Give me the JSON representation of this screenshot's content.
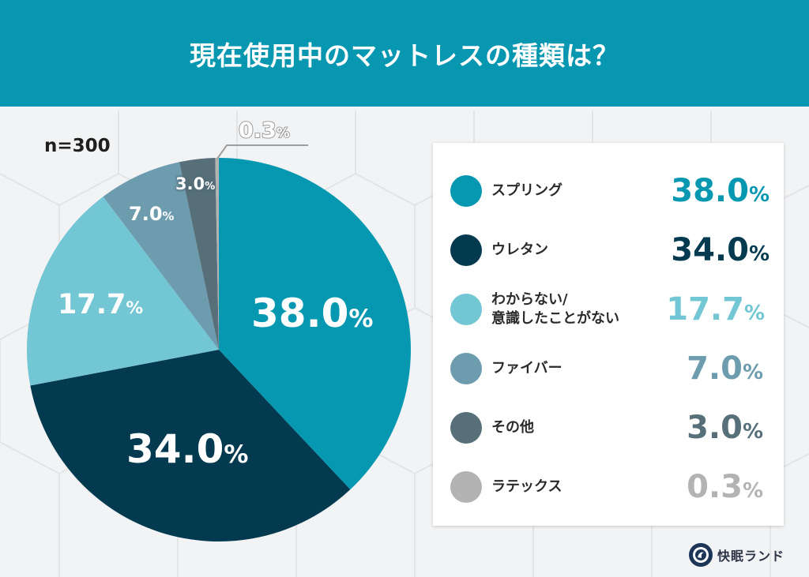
{
  "header": {
    "title": "現在使用中のマットレスの種類は？",
    "background_color": "#0797b0"
  },
  "sample_size": "n=300",
  "chart_data": {
    "type": "pie",
    "title": "現在使用中のマットレスの種類は？",
    "subtitle": "n=300",
    "start_angle_deg": 0,
    "direction": "clockwise",
    "categories": [
      "スプリング",
      "ウレタン",
      "わからない/意識したことがない",
      "ファイバー",
      "その他",
      "ラテックス"
    ],
    "values": [
      38.0,
      34.0,
      17.7,
      7.0,
      3.0,
      0.3
    ],
    "unit": "%",
    "colors": [
      "#0598b0",
      "#033a50",
      "#73c6d3",
      "#6d9caf",
      "#566f79",
      "#b3b3b3"
    ],
    "legend_position": "right"
  },
  "pie_labels": {
    "spring": {
      "num": "38.0",
      "pct": "%"
    },
    "urethane": {
      "num": "34.0",
      "pct": "%"
    },
    "unknown": {
      "num": "17.7",
      "pct": "%"
    },
    "fiber": {
      "num": "7.0",
      "pct": "%"
    },
    "other": {
      "num": "3.0",
      "pct": "%"
    },
    "latex": {
      "num": "0.3",
      "pct": "%"
    }
  },
  "legend": {
    "items": [
      {
        "name": "スプリング",
        "num": "38.0",
        "pct": "%",
        "color": "#0598b0"
      },
      {
        "name": "ウレタン",
        "num": "34.0",
        "pct": "%",
        "color": "#033a50"
      },
      {
        "name": "わからない/\n意識したことがない",
        "num": "17.7",
        "pct": "%",
        "color": "#73c6d3"
      },
      {
        "name": "ファイバー",
        "num": "7.0",
        "pct": "%",
        "color": "#6d9caf"
      },
      {
        "name": "その他",
        "num": "3.0",
        "pct": "%",
        "color": "#566f79"
      },
      {
        "name": "ラテックス",
        "num": "0.3",
        "pct": "%",
        "color": "#b3b3b3"
      }
    ]
  },
  "brand": {
    "name": "快眠ランド"
  }
}
